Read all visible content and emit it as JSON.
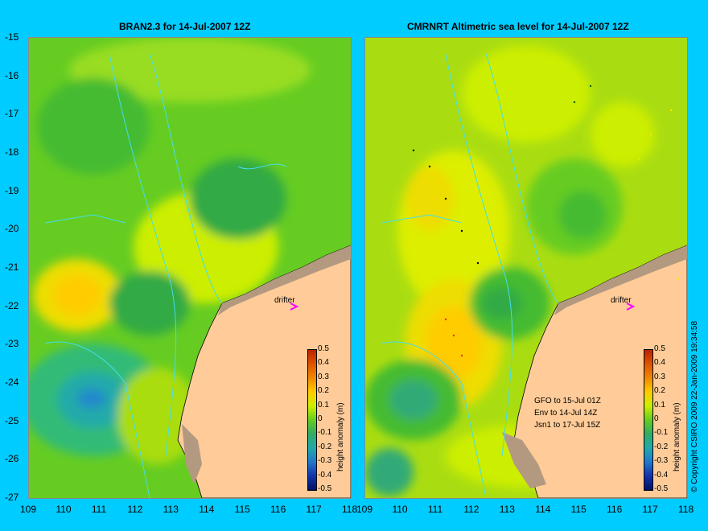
{
  "left_panel": {
    "title": "BRAN2.3 for 14-Jul-2007 12Z",
    "drifter_label": "drifter",
    "colorbar": {
      "label": "height anomaly (m)",
      "ticks": [
        "0.5",
        "0.4",
        "0.3",
        "0.2",
        "0.1",
        "0",
        "-0.1",
        "-0.2",
        "-0.3",
        "-0.4",
        "-0.5"
      ]
    }
  },
  "right_panel": {
    "title": "CMRNRT Altimetric sea level  for 14-Jul-2007 12Z",
    "drifter_label": "drifter",
    "notes": [
      "GFO to 15-Jul 01Z",
      "Env to 14-Jul 14Z",
      "Jsn1 to 17-Jul 15Z"
    ],
    "colorbar": {
      "label": "height anomaly (m)",
      "ticks": [
        "0.5",
        "0.4",
        "0.3",
        "0.2",
        "0.1",
        "0",
        "-0.1",
        "-0.2",
        "-0.3",
        "-0.4",
        "-0.5"
      ]
    }
  },
  "y_axis_ticks": [
    "-15",
    "-16",
    "-17",
    "-18",
    "-19",
    "-20",
    "-21",
    "-22",
    "-23",
    "-24",
    "-25",
    "-26",
    "-27"
  ],
  "x_axis_ticks": [
    "109",
    "110",
    "111",
    "112",
    "113",
    "114",
    "115",
    "116",
    "117",
    "118"
  ],
  "copyright": "© Copyright CSIRO 2009   22-Jan-2009 19:34:58",
  "colors": {
    "background": "#00ccff",
    "land": "#ffcc99",
    "marker": "#ff00ff"
  }
}
